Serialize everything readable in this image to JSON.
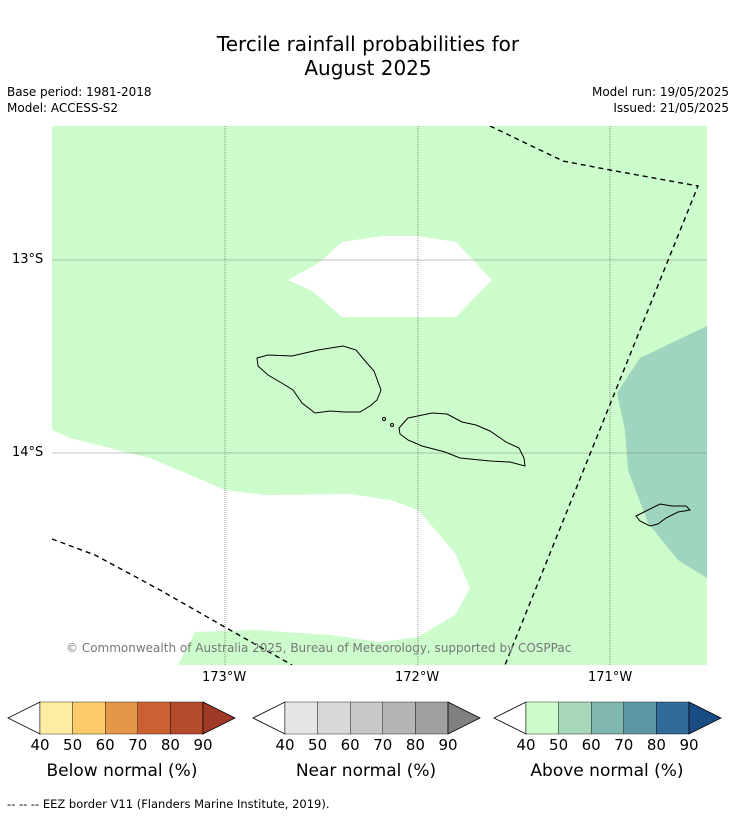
{
  "header": {
    "title_line1": "Tercile rainfall probabilities for",
    "title_line2": "August 2025",
    "base_period": "Base period: 1981-2018",
    "model": "Model: ACCESS-S2",
    "model_run": "Model run: 19/05/2025",
    "issued": "Issued: 21/05/2025"
  },
  "map": {
    "lon_labels": [
      "173°W",
      "172°W",
      "171°W"
    ],
    "lat_labels": [
      "13°S",
      "14°S"
    ],
    "copyright": "© Commonwealth of Australia 2025, Bureau of Meteorology, supported by COSPPac",
    "colors": {
      "above_40_50": "#ccfccb",
      "above_60_70": "#9fd4be",
      "no_signal": "#ffffff",
      "land_outline": "#000000"
    }
  },
  "colorbars": [
    {
      "caption": "Below normal (%)",
      "ticks": [
        "40",
        "50",
        "60",
        "70",
        "80",
        "90"
      ],
      "colors": [
        "#ffffff",
        "#feeca2",
        "#fdcb6b",
        "#e3974a",
        "#cb6032",
        "#b34c2a",
        "#9e3a26"
      ]
    },
    {
      "caption": "Near normal (%)",
      "ticks": [
        "40",
        "50",
        "60",
        "70",
        "80",
        "90"
      ],
      "colors": [
        "#ffffff",
        "#e6e6e6",
        "#d8d8d8",
        "#c8c8c8",
        "#b4b4b4",
        "#a0a0a0",
        "#808080"
      ]
    },
    {
      "caption": "Above normal (%)",
      "ticks": [
        "40",
        "50",
        "60",
        "70",
        "80",
        "90"
      ],
      "colors": [
        "#ffffff",
        "#ccfccb",
        "#a8d8bc",
        "#80b8b0",
        "#5a96a4",
        "#326a9a",
        "#1a4c84"
      ]
    }
  ],
  "footer": {
    "legend_text": "--  --  -- EEZ border V11 (Flanders Marine Institute, 2019)."
  }
}
